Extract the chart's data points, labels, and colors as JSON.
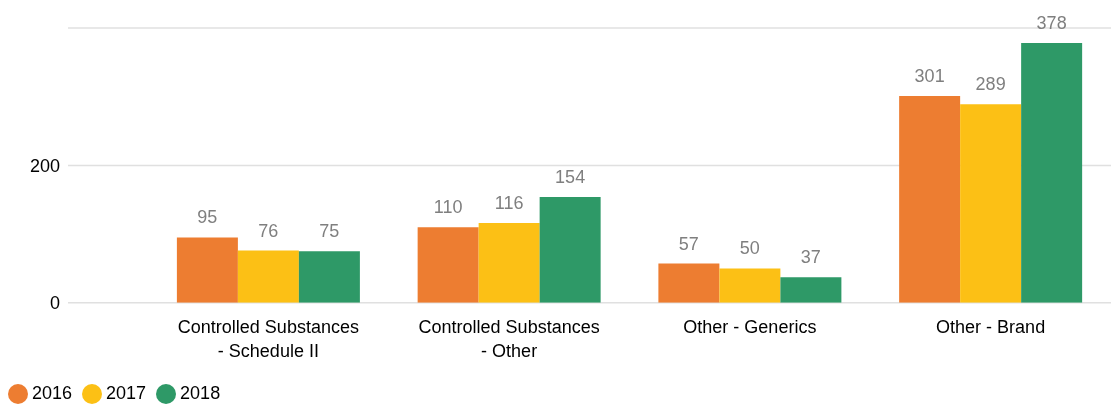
{
  "chart_data": {
    "type": "bar",
    "categories": [
      "Controlled Substances - Schedule II",
      "Controlled Substances - Other",
      "Other - Generics",
      "Other - Brand"
    ],
    "series": [
      {
        "name": "2016",
        "color": "#ed7d31",
        "values": [
          95,
          110,
          57,
          301
        ]
      },
      {
        "name": "2017",
        "color": "#fcc015",
        "values": [
          76,
          116,
          50,
          289
        ]
      },
      {
        "name": "2018",
        "color": "#2e9967",
        "values": [
          75,
          154,
          37,
          378
        ]
      }
    ],
    "ylim": [
      0,
      400
    ],
    "yticks": [
      0,
      200
    ],
    "grid": "y",
    "legend": "bottom left",
    "data_labels": true
  }
}
